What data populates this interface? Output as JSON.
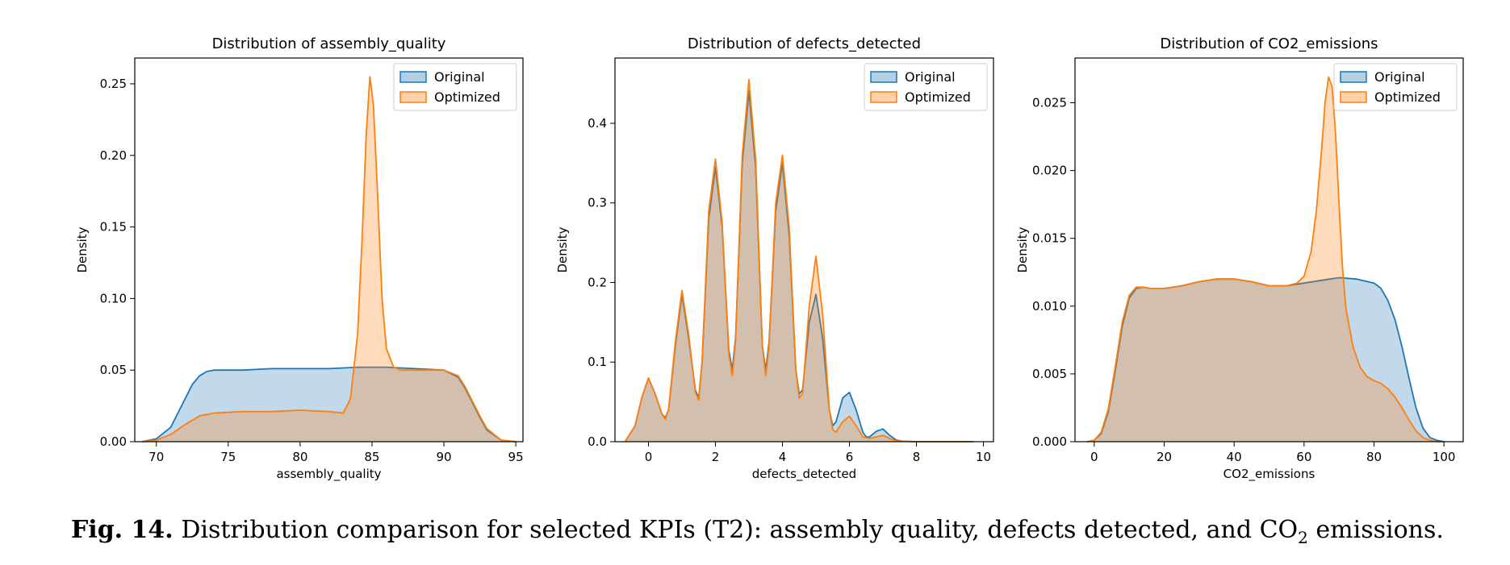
{
  "colors": {
    "original_line": "#1f77b4",
    "original_fill": "#1f77b4",
    "optimized_line": "#ff7f0e",
    "optimized_fill": "#ff7f0e"
  },
  "chart_data": [
    {
      "type": "area",
      "title": "Distribution of assembly_quality",
      "xlabel": "assembly_quality",
      "ylabel": "Density",
      "xlim": [
        68.5,
        95.5
      ],
      "ylim": [
        0,
        0.268
      ],
      "xticks": [
        70,
        75,
        80,
        85,
        90,
        95
      ],
      "yticks": [
        0.0,
        0.05,
        0.1,
        0.15,
        0.2,
        0.25
      ],
      "ytick_labels": [
        "0.00",
        "0.05",
        "0.10",
        "0.15",
        "0.20",
        "0.25"
      ],
      "legend": [
        "Original",
        "Optimized"
      ],
      "legend_position": "top-right",
      "series": [
        {
          "name": "Original",
          "x": [
            69,
            70,
            71,
            72,
            72.5,
            73,
            73.5,
            74,
            75,
            76,
            78,
            80,
            82,
            84,
            85,
            86,
            88,
            90,
            91,
            91.5,
            92,
            92.5,
            93,
            94,
            95
          ],
          "y": [
            0.0,
            0.002,
            0.01,
            0.03,
            0.04,
            0.046,
            0.049,
            0.05,
            0.05,
            0.05,
            0.051,
            0.051,
            0.051,
            0.052,
            0.052,
            0.052,
            0.051,
            0.05,
            0.045,
            0.037,
            0.027,
            0.017,
            0.008,
            0.001,
            0.0
          ]
        },
        {
          "name": "Optimized",
          "x": [
            69,
            70,
            71,
            72,
            73,
            74,
            76,
            78,
            80,
            82,
            83,
            83.5,
            84,
            84.3,
            84.6,
            84.85,
            85.1,
            85.4,
            85.7,
            86,
            86.5,
            87,
            88,
            89,
            90,
            91,
            91.5,
            92,
            92.5,
            93,
            94,
            95
          ],
          "y": [
            0.0,
            0.001,
            0.005,
            0.012,
            0.018,
            0.02,
            0.021,
            0.021,
            0.022,
            0.021,
            0.02,
            0.03,
            0.075,
            0.14,
            0.215,
            0.255,
            0.235,
            0.17,
            0.1,
            0.065,
            0.052,
            0.05,
            0.05,
            0.05,
            0.05,
            0.046,
            0.038,
            0.028,
            0.018,
            0.009,
            0.001,
            0.0
          ]
        }
      ]
    },
    {
      "type": "area",
      "title": "Distribution of defects_detected",
      "xlabel": "defects_detected",
      "ylabel": "Density",
      "xlim": [
        -1.0,
        10.3
      ],
      "ylim": [
        0,
        0.482
      ],
      "xticks": [
        0,
        2,
        4,
        6,
        8,
        10
      ],
      "yticks": [
        0.0,
        0.1,
        0.2,
        0.3,
        0.4
      ],
      "ytick_labels": [
        "0.0",
        "0.1",
        "0.2",
        "0.3",
        "0.4"
      ],
      "legend": [
        "Original",
        "Optimized"
      ],
      "legend_position": "top-right",
      "series": [
        {
          "name": "Original",
          "x": [
            -0.7,
            -0.4,
            -0.2,
            0,
            0.2,
            0.4,
            0.5,
            0.6,
            0.8,
            1,
            1.2,
            1.4,
            1.5,
            1.6,
            1.8,
            2,
            2.2,
            2.4,
            2.5,
            2.6,
            2.8,
            3,
            3.2,
            3.4,
            3.5,
            3.6,
            3.8,
            4,
            4.2,
            4.4,
            4.5,
            4.6,
            4.8,
            5,
            5.2,
            5.4,
            5.5,
            5.6,
            5.8,
            6,
            6.2,
            6.4,
            6.5,
            6.6,
            6.8,
            7,
            7.2,
            7.4,
            7.6,
            8,
            9,
            9.7
          ],
          "y": [
            0.0,
            0.02,
            0.055,
            0.08,
            0.06,
            0.035,
            0.03,
            0.04,
            0.12,
            0.185,
            0.13,
            0.065,
            0.055,
            0.1,
            0.28,
            0.345,
            0.27,
            0.115,
            0.09,
            0.13,
            0.35,
            0.44,
            0.345,
            0.12,
            0.09,
            0.125,
            0.29,
            0.35,
            0.26,
            0.09,
            0.06,
            0.065,
            0.15,
            0.185,
            0.13,
            0.04,
            0.02,
            0.025,
            0.055,
            0.062,
            0.04,
            0.012,
            0.006,
            0.006,
            0.013,
            0.016,
            0.008,
            0.002,
            0.0005,
            0.0,
            0.0,
            0.0
          ]
        },
        {
          "name": "Optimized",
          "x": [
            -0.7,
            -0.4,
            -0.2,
            0,
            0.2,
            0.4,
            0.5,
            0.6,
            0.8,
            1,
            1.2,
            1.4,
            1.5,
            1.6,
            1.8,
            2,
            2.2,
            2.4,
            2.5,
            2.6,
            2.8,
            3,
            3.2,
            3.4,
            3.5,
            3.6,
            3.8,
            4,
            4.2,
            4.4,
            4.5,
            4.6,
            4.8,
            5,
            5.2,
            5.4,
            5.5,
            5.6,
            5.8,
            6,
            6.2,
            6.4,
            6.6,
            7,
            7.2,
            7.4,
            8,
            9,
            9.7
          ],
          "y": [
            0.0,
            0.02,
            0.055,
            0.08,
            0.06,
            0.035,
            0.028,
            0.04,
            0.125,
            0.19,
            0.135,
            0.062,
            0.052,
            0.1,
            0.29,
            0.355,
            0.275,
            0.11,
            0.083,
            0.125,
            0.36,
            0.455,
            0.355,
            0.12,
            0.083,
            0.12,
            0.3,
            0.36,
            0.27,
            0.09,
            0.055,
            0.06,
            0.17,
            0.233,
            0.16,
            0.04,
            0.015,
            0.012,
            0.025,
            0.032,
            0.02,
            0.006,
            0.004,
            0.008,
            0.004,
            0.001,
            0.0,
            0.0,
            0.0
          ]
        }
      ]
    },
    {
      "type": "area",
      "title": "Distribution of CO2_emissions",
      "xlabel": "CO2_emissions",
      "ylabel": "Density",
      "xlim": [
        -5.5,
        105.5
      ],
      "ylim": [
        0,
        0.0283
      ],
      "xticks": [
        0,
        20,
        40,
        60,
        80,
        100
      ],
      "yticks": [
        0.0,
        0.005,
        0.01,
        0.015,
        0.02,
        0.025
      ],
      "ytick_labels": [
        "0.000",
        "0.005",
        "0.010",
        "0.015",
        "0.020",
        "0.025"
      ],
      "legend": [
        "Original",
        "Optimized"
      ],
      "legend_position": "top-right",
      "series": [
        {
          "name": "Original",
          "x": [
            -2,
            0,
            2,
            4,
            6,
            8,
            10,
            12,
            14,
            16,
            20,
            25,
            30,
            35,
            40,
            45,
            50,
            55,
            60,
            65,
            70,
            75,
            80,
            82,
            84,
            86,
            88,
            90,
            92,
            94,
            96,
            98,
            100
          ],
          "y": [
            0.0,
            0.0001,
            0.0006,
            0.0022,
            0.0052,
            0.0085,
            0.0106,
            0.0113,
            0.0114,
            0.0113,
            0.0113,
            0.0115,
            0.0118,
            0.012,
            0.012,
            0.0118,
            0.0115,
            0.0115,
            0.0117,
            0.0119,
            0.0121,
            0.012,
            0.0117,
            0.0113,
            0.0104,
            0.009,
            0.007,
            0.0047,
            0.0025,
            0.001,
            0.0003,
            0.0001,
            0.0
          ]
        },
        {
          "name": "Optimized",
          "x": [
            -2,
            0,
            2,
            4,
            6,
            8,
            10,
            12,
            14,
            16,
            20,
            25,
            30,
            35,
            40,
            45,
            50,
            55,
            58,
            60,
            62,
            63.5,
            65,
            66,
            67,
            68,
            69,
            70,
            71,
            72,
            74,
            76,
            78,
            80,
            82,
            84,
            86,
            88,
            90,
            92,
            94,
            96,
            98,
            100
          ],
          "y": [
            0.0,
            0.0001,
            0.0007,
            0.0024,
            0.0055,
            0.0088,
            0.0108,
            0.0114,
            0.0114,
            0.0113,
            0.0113,
            0.0115,
            0.0118,
            0.012,
            0.012,
            0.0118,
            0.0115,
            0.0115,
            0.0117,
            0.0122,
            0.014,
            0.017,
            0.0215,
            0.025,
            0.0269,
            0.0262,
            0.0228,
            0.0175,
            0.0128,
            0.0098,
            0.007,
            0.0055,
            0.0048,
            0.0045,
            0.0043,
            0.0039,
            0.0033,
            0.0025,
            0.0016,
            0.0008,
            0.0003,
            0.0001,
            0.0,
            0.0
          ]
        }
      ]
    }
  ],
  "caption": {
    "label": "Fig. 14.",
    "text_before_sub": "Distribution comparison for selected KPIs (T2): assembly quality, defects detected, and CO",
    "subscript": "2",
    "text_after_sub": "emissions."
  }
}
